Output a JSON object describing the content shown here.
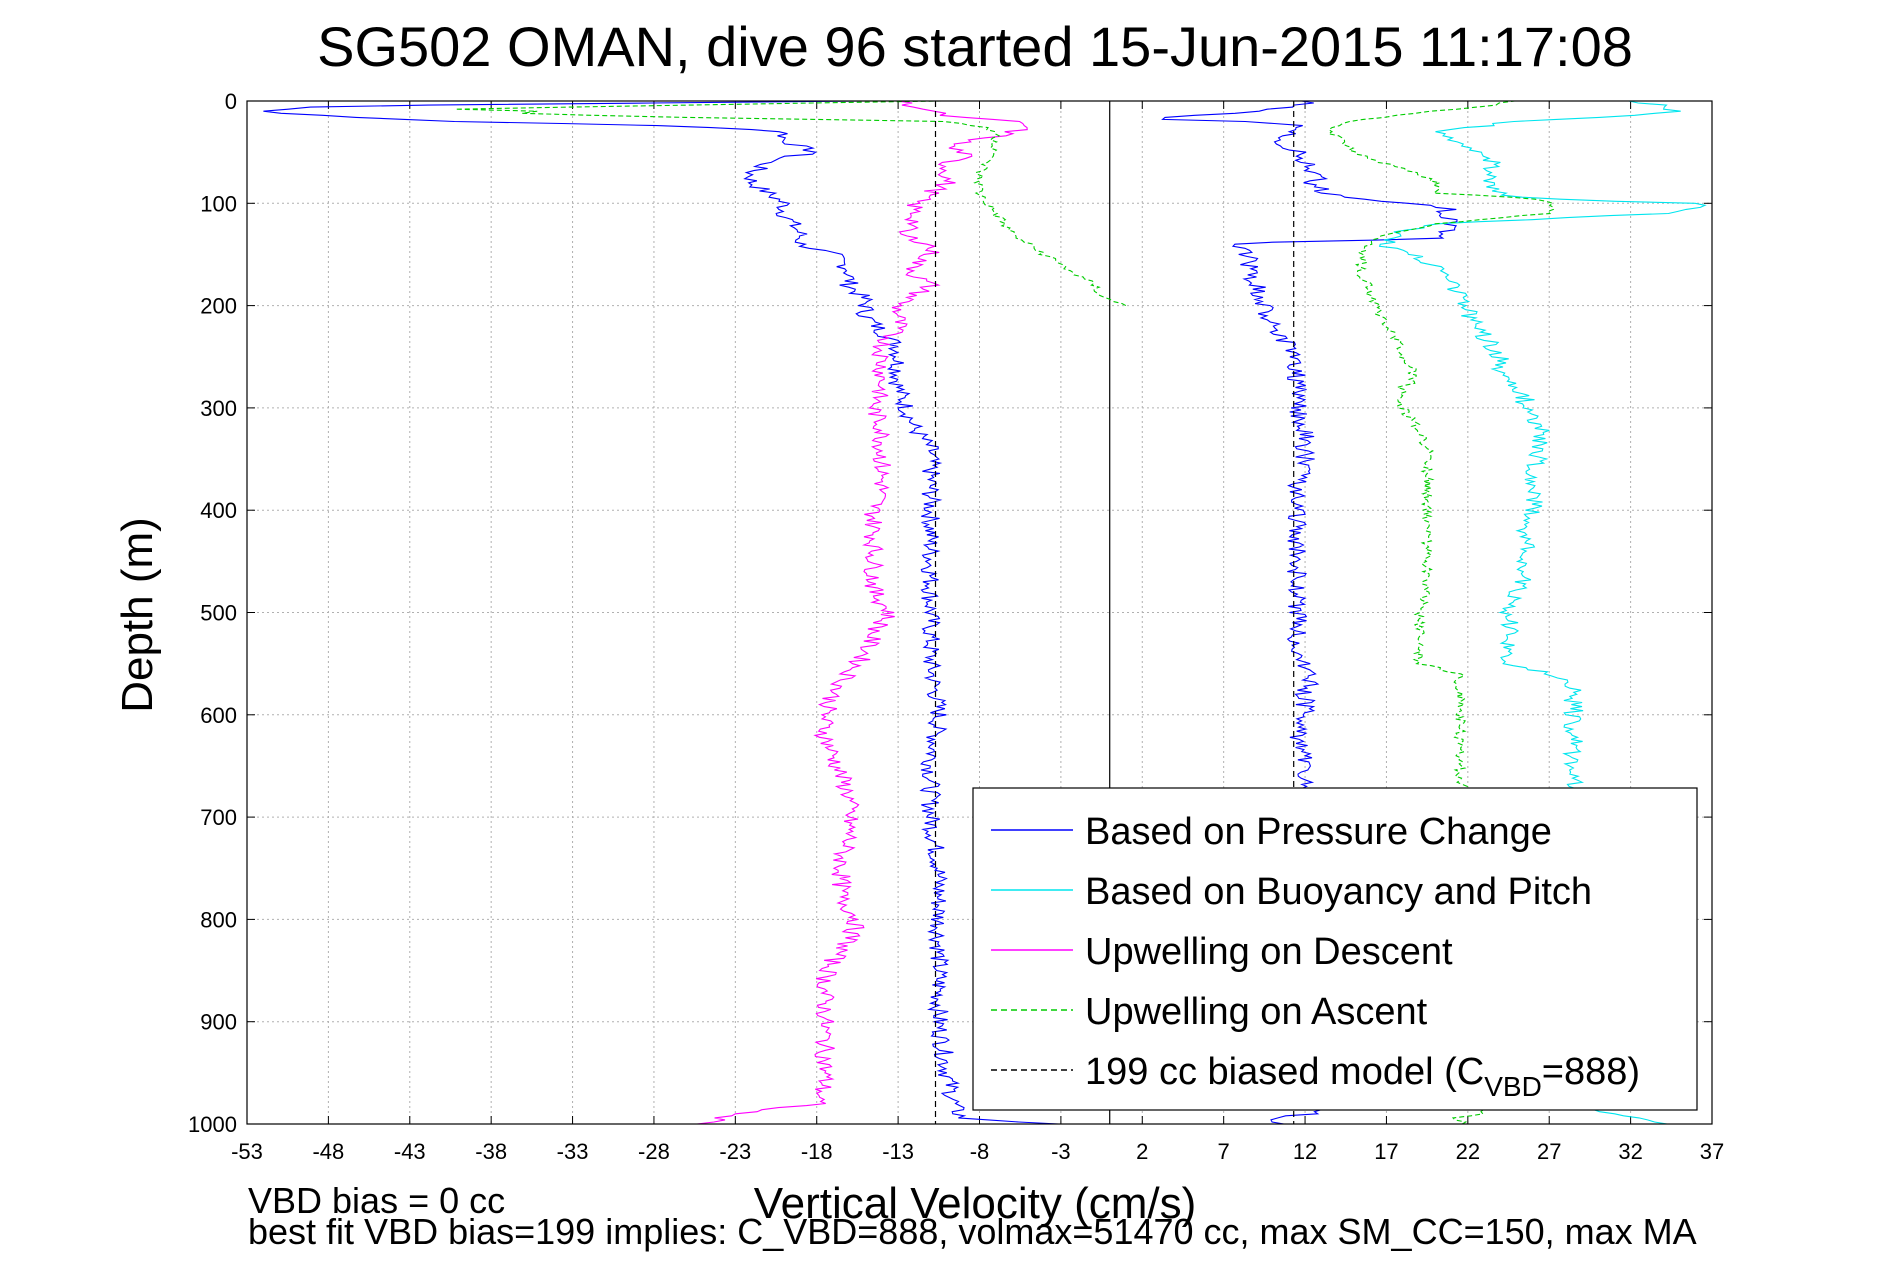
{
  "chart_data": {
    "type": "line",
    "title": "SG502 OMAN, dive 96 started 15-Jun-2015 11:17:08",
    "xlabel": "Vertical Velocity (cm/s)",
    "ylabel": "Depth (m)",
    "xlim": [
      -53,
      37
    ],
    "ylim": [
      1000,
      0
    ],
    "y_reversed": true,
    "grid": true,
    "xticks": [
      -53,
      -48,
      -43,
      -38,
      -33,
      -28,
      -23,
      -18,
      -13,
      -8,
      -3,
      2,
      7,
      12,
      17,
      22,
      27,
      32,
      37
    ],
    "yticks": [
      0,
      100,
      200,
      300,
      400,
      500,
      600,
      700,
      800,
      900,
      1000
    ],
    "legend_position": "bottom-right",
    "series": [
      {
        "name": "Based on Pressure Change",
        "color": "#0000ff",
        "style": "solid",
        "profiles": [
          {
            "depth": [
              0,
              5,
              10,
              15,
              20,
              25,
              30,
              38,
              45,
              50,
              55,
              60,
              70,
              80,
              90,
              100,
              110,
              120,
              130,
              140,
              150,
              165,
              180,
              195,
              210,
              225,
              240,
              260,
              280,
              300,
              320,
              340,
              360,
              380,
              400,
              450,
              500,
              550,
              600,
              650,
              700,
              750,
              800,
              850,
              900,
              950,
              985,
              995,
              1000
            ],
            "velocity": [
              -15,
              -48,
              -52,
              -48,
              -40,
              -25,
              -20,
              -20,
              -19,
              -18,
              -20,
              -21,
              -22,
              -22,
              -21,
              -20,
              -20,
              -19.5,
              -19,
              -19,
              -17,
              -16,
              -16,
              -15,
              -15,
              -14,
              -13,
              -13,
              -13,
              -12.5,
              -12,
              -11,
              -11,
              -11,
              -11,
              -11,
              -11,
              -11,
              -10.5,
              -11,
              -11,
              -10.5,
              -10.5,
              -10.5,
              -10.5,
              -10,
              -9.5,
              -9,
              -3
            ]
          },
          {
            "depth": [
              1000,
              995,
              990,
              980,
              960,
              920,
              880,
              840,
              800,
              760,
              720,
              700,
              680,
              660,
              640,
              620,
              600,
              580,
              560,
              540,
              500,
              460,
              420,
              380,
              350,
              320,
              300,
              280,
              260,
              240,
              220,
              200,
              180,
              160,
              150,
              145,
              140,
              138,
              135,
              132,
              125,
              115,
              110,
              105,
              100,
              95,
              90,
              85,
              80,
              75,
              70,
              65,
              60,
              55,
              50,
              45,
              40,
              35,
              30,
              25,
              22,
              20,
              18,
              15,
              12,
              8,
              5,
              2,
              0
            ],
            "velocity": [
              11,
              9,
              13,
              12,
              12,
              12,
              12,
              12,
              12,
              12,
              12,
              12,
              12,
              12,
              12,
              11.5,
              12,
              12,
              12.5,
              11.5,
              11.5,
              11.5,
              11.5,
              11.5,
              12,
              12,
              11.5,
              11.5,
              11.5,
              11,
              10,
              9.5,
              9,
              8.5,
              8.5,
              8,
              8,
              10,
              20,
              20,
              21,
              21,
              20,
              21,
              18,
              15,
              13,
              13,
              12.5,
              13,
              12.5,
              12.5,
              12,
              12,
              11.5,
              11,
              10.5,
              11,
              11,
              12,
              10,
              8,
              3,
              3,
              8,
              10,
              11,
              12,
              12
            ]
          }
        ]
      },
      {
        "name": "Based on Buoyancy and Pitch",
        "color": "#00e5ee",
        "style": "solid",
        "profiles": [
          {
            "depth": [
              1000,
              990,
              985,
              950,
              900,
              850,
              800,
              760,
              720,
              700,
              690,
              680,
              670,
              660,
              650,
              640,
              620,
              600,
              580,
              570,
              565,
              560,
              555,
              550,
              520,
              500,
              480,
              460,
              440,
              420,
              400,
              380,
              360,
              340,
              320,
              310,
              300,
              290,
              280,
              270,
              260,
              250,
              240,
              230,
              220,
              210,
              200,
              190,
              180,
              170,
              160,
              150,
              145,
              142,
              140,
              135,
              130,
              120,
              110,
              105,
              100,
              95,
              90,
              80,
              70,
              60,
              55,
              50,
              45,
              40,
              35,
              30,
              20,
              15,
              10,
              5,
              0
            ],
            "velocity": [
              34,
              31,
              30,
              30,
              30,
              30,
              30,
              30,
              30,
              30,
              30,
              29,
              28.5,
              28.5,
              28.5,
              28.5,
              28.5,
              28.5,
              28.5,
              28.5,
              28,
              27,
              25.5,
              24.5,
              24.5,
              24.5,
              25,
              25.5,
              25.5,
              25.5,
              26,
              26,
              26,
              26.5,
              26.5,
              26,
              25.5,
              25.5,
              25,
              24.5,
              24,
              24,
              23.5,
              23,
              22.5,
              22,
              22,
              21.5,
              21,
              20.5,
              20,
              18.5,
              17.5,
              17,
              17,
              17.5,
              17.5,
              20,
              34,
              36,
              36,
              25,
              24,
              23.5,
              23.5,
              23.5,
              23.5,
              22.5,
              22,
              21,
              20.5,
              20.5,
              25,
              31,
              35,
              34,
              32
            ]
          }
        ]
      },
      {
        "name": "Upwelling on Descent",
        "color": "#ff00ff",
        "style": "solid",
        "profiles": [
          {
            "depth": [
              0,
              5,
              10,
              15,
              20,
              25,
              30,
              35,
              40,
              45,
              50,
              55,
              60,
              65,
              70,
              80,
              90,
              100,
              110,
              120,
              130,
              140,
              150,
              160,
              170,
              180,
              190,
              200,
              220,
              240,
              260,
              280,
              300,
              320,
              340,
              360,
              380,
              400,
              420,
              440,
              460,
              480,
              500,
              520,
              540,
              560,
              580,
              600,
              620,
              640,
              660,
              680,
              700,
              720,
              740,
              760,
              780,
              800,
              820,
              840,
              860,
              880,
              900,
              920,
              940,
              960,
              980,
              990,
              1000
            ],
            "velocity": [
              -13,
              -12,
              -11,
              -10,
              -6,
              -5,
              -6,
              -7,
              -9,
              -10,
              -9,
              -9,
              -10,
              -10,
              -10,
              -10,
              -11,
              -12,
              -12,
              -12,
              -13,
              -11,
              -11,
              -12,
              -12,
              -11,
              -12,
              -13,
              -13,
              -14,
              -14,
              -14,
              -14.5,
              -14,
              -14,
              -14,
              -14,
              -14.5,
              -14.5,
              -14.5,
              -14.5,
              -14.5,
              -13.5,
              -14.5,
              -15,
              -16,
              -17,
              -17.5,
              -17.5,
              -17,
              -16.5,
              -16,
              -16,
              -16,
              -16.5,
              -16.5,
              -16.5,
              -15.5,
              -16,
              -17,
              -17.5,
              -17.5,
              -17.5,
              -17.5,
              -17.5,
              -17.5,
              -18,
              -23,
              -25
            ]
          }
        ]
      },
      {
        "name": "Upwelling on Ascent",
        "color": "#00cc00",
        "style": "dashed",
        "profiles": [
          {
            "depth": [
              1000,
              995,
              990,
              980,
              960,
              920,
              880,
              840,
              800,
              760,
              720,
              700,
              680,
              660,
              640,
              620,
              600,
              580,
              565,
              560,
              550,
              520,
              500,
              480,
              460,
              440,
              420,
              400,
              380,
              360,
              340,
              320,
              300,
              290,
              280,
              275,
              270,
              260,
              250,
              240,
              230,
              220,
              210,
              200,
              190,
              180,
              170,
              160,
              150,
              145,
              140,
              135,
              130,
              120,
              110,
              100,
              95,
              90,
              80,
              70,
              60,
              50,
              40,
              35,
              30,
              25,
              20,
              15,
              10,
              5,
              0
            ],
            "velocity": [
              22,
              21,
              23,
              22,
              22,
              22,
              22,
              22,
              22,
              22,
              22,
              22,
              22,
              21.5,
              21.5,
              21.5,
              21.5,
              21.5,
              21.5,
              21.5,
              19,
              19,
              19,
              19.5,
              19.5,
              19.5,
              19.5,
              19.5,
              19.5,
              19.5,
              19.5,
              19,
              18,
              18,
              18,
              18.5,
              18.5,
              18.5,
              18,
              18,
              17.5,
              17,
              16.5,
              16.5,
              16,
              16,
              15.5,
              15.5,
              15.5,
              15.5,
              16,
              16.5,
              17,
              20,
              27,
              27,
              26,
              20,
              20,
              19,
              16.5,
              15,
              14.5,
              14,
              13.5,
              14,
              15,
              17,
              20,
              23,
              25
            ]
          },
          {
            "depth": [
              0,
              5,
              8,
              10,
              12,
              15,
              20,
              25,
              30,
              35,
              40,
              45,
              50,
              55,
              60,
              70,
              80,
              90,
              100,
              110,
              120,
              130,
              140,
              150,
              160,
              170,
              180,
              190,
              195,
              200
            ],
            "velocity": [
              -10,
              -30,
              -40,
              -35,
              -36,
              -30,
              -10,
              -8,
              -7,
              -7,
              -7,
              -7,
              -7,
              -7.5,
              -7.5,
              -8,
              -8,
              -8,
              -7.5,
              -7,
              -6.5,
              -6,
              -5,
              -4,
              -3,
              -2,
              -1,
              -0.5,
              0,
              1
            ]
          }
        ]
      },
      {
        "name": "199 cc biased model (C_VBD=888)",
        "color": "#000000",
        "style": "dashed",
        "profiles": [
          {
            "depth": [
              0,
              1000
            ],
            "velocity": [
              -10.7,
              -10.7
            ]
          },
          {
            "depth": [
              0,
              1000
            ],
            "velocity": [
              11.3,
              11.3
            ]
          }
        ]
      }
    ],
    "reference_line_x": 0,
    "legend_entries": [
      {
        "label": "Based on Pressure Change",
        "color": "#0000ff",
        "style": "solid"
      },
      {
        "label": "Based on Buoyancy and Pitch",
        "color": "#00e5ee",
        "style": "solid"
      },
      {
        "label": "Upwelling on Descent",
        "color": "#ff00ff",
        "style": "solid"
      },
      {
        "label": "Upwelling on Ascent",
        "color": "#00cc00",
        "style": "dashed"
      },
      {
        "label_main": "199 cc biased model (C",
        "label_sub": "VBD",
        "label_tail": "=888)",
        "color": "#000000",
        "style": "dashed"
      }
    ]
  },
  "footnotes": {
    "line1": "VBD bias = 0 cc",
    "line2": "best fit VBD bias=199 implies: C_VBD=888, volmax=51470 cc, max SM_CC=150, max MA"
  }
}
